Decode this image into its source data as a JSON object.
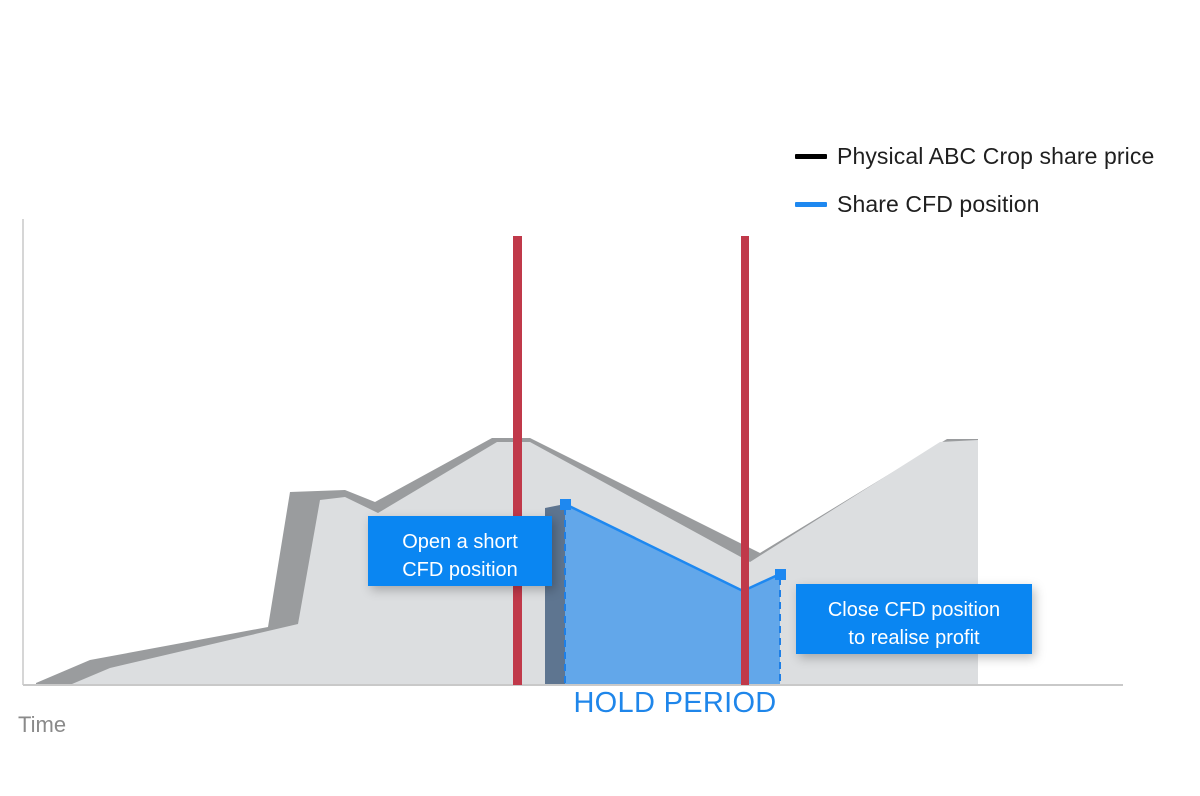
{
  "legend": [
    {
      "label": "Physical ABC Crop share price",
      "color": "#000000",
      "icon": "black-line-swatch"
    },
    {
      "label": "Share CFD position",
      "color": "#1e88f0",
      "icon": "blue-line-swatch"
    }
  ],
  "callouts": {
    "open": {
      "line1": "Open a short",
      "line2": "CFD position"
    },
    "close": {
      "line1": "Close CFD position",
      "line2": "to realise profit"
    }
  },
  "hold_period": "HOLD PERIOD",
  "x_axis_label": "Time",
  "colors": {
    "accent": "#1e88f0",
    "callout_bg": "#0a86f2",
    "marker": "#c0394a",
    "price_area": "#dcdee0",
    "price_area_edge": "#9a9c9e",
    "hold_fill": "#5ba3ea",
    "hold_text": "#1f86ea"
  }
}
